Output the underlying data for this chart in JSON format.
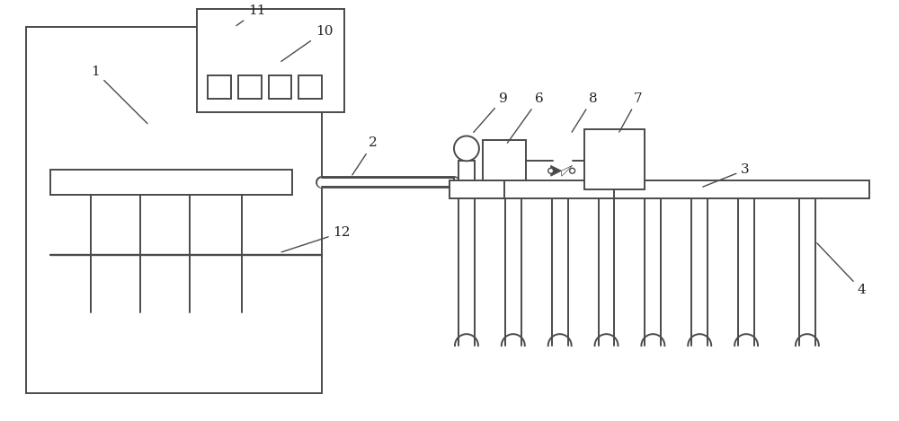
{
  "bg_color": "#ffffff",
  "line_color": "#4a4a4a",
  "lw": 1.4,
  "fig_w": 10.0,
  "fig_h": 4.69
}
